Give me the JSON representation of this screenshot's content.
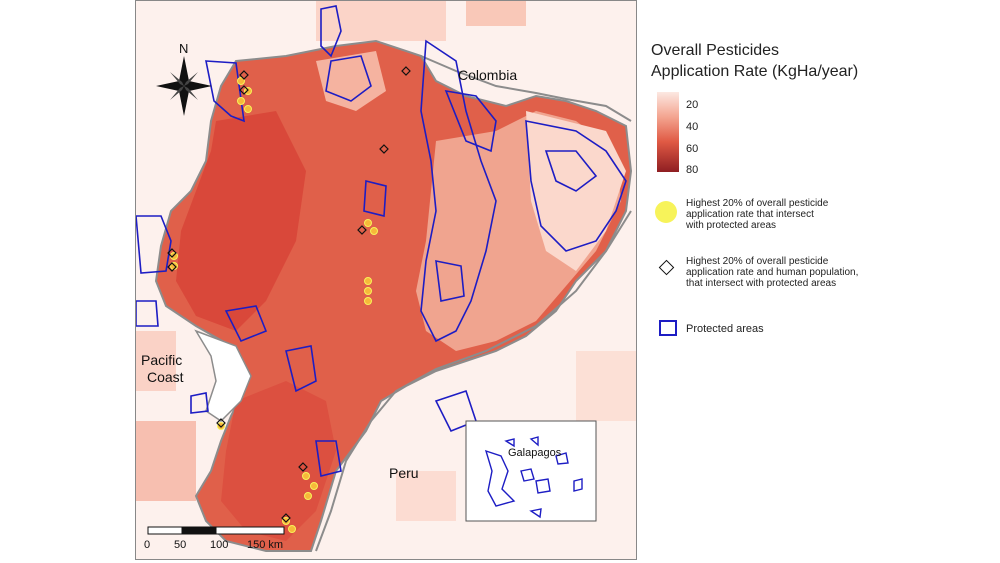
{
  "legend": {
    "title_line1": "Overall Pesticides",
    "title_line2": "Application Rate (KgHa/year)",
    "ramp_ticks": [
      "20",
      "40",
      "60",
      "80"
    ],
    "yellow_line1": "Highest 20% of overall pesticide",
    "yellow_line2": "application rate that intersect",
    "yellow_line3": "with protected areas",
    "diamond_line1": "Highest 20% of overall pesticide",
    "diamond_line2": "application rate and human population,",
    "diamond_line3": "that intersect with protected areas",
    "protected_label": "Protected areas"
  },
  "map": {
    "north_label": "N",
    "colombia_label": "Colombia",
    "pacific_line1": "Pacific",
    "pacific_line2": "Coast",
    "peru_label": "Peru",
    "galapagos_label": "Galapagos",
    "scale_labels": [
      "0",
      "50",
      "100",
      "150 km"
    ]
  },
  "colors": {
    "protected_outline": "#1d1dc4",
    "country_outline": "#8c8c8c",
    "highlight_yellow": "#f7f35a",
    "high_rate": "#e05a44",
    "low_rate": "#fce8e2"
  }
}
